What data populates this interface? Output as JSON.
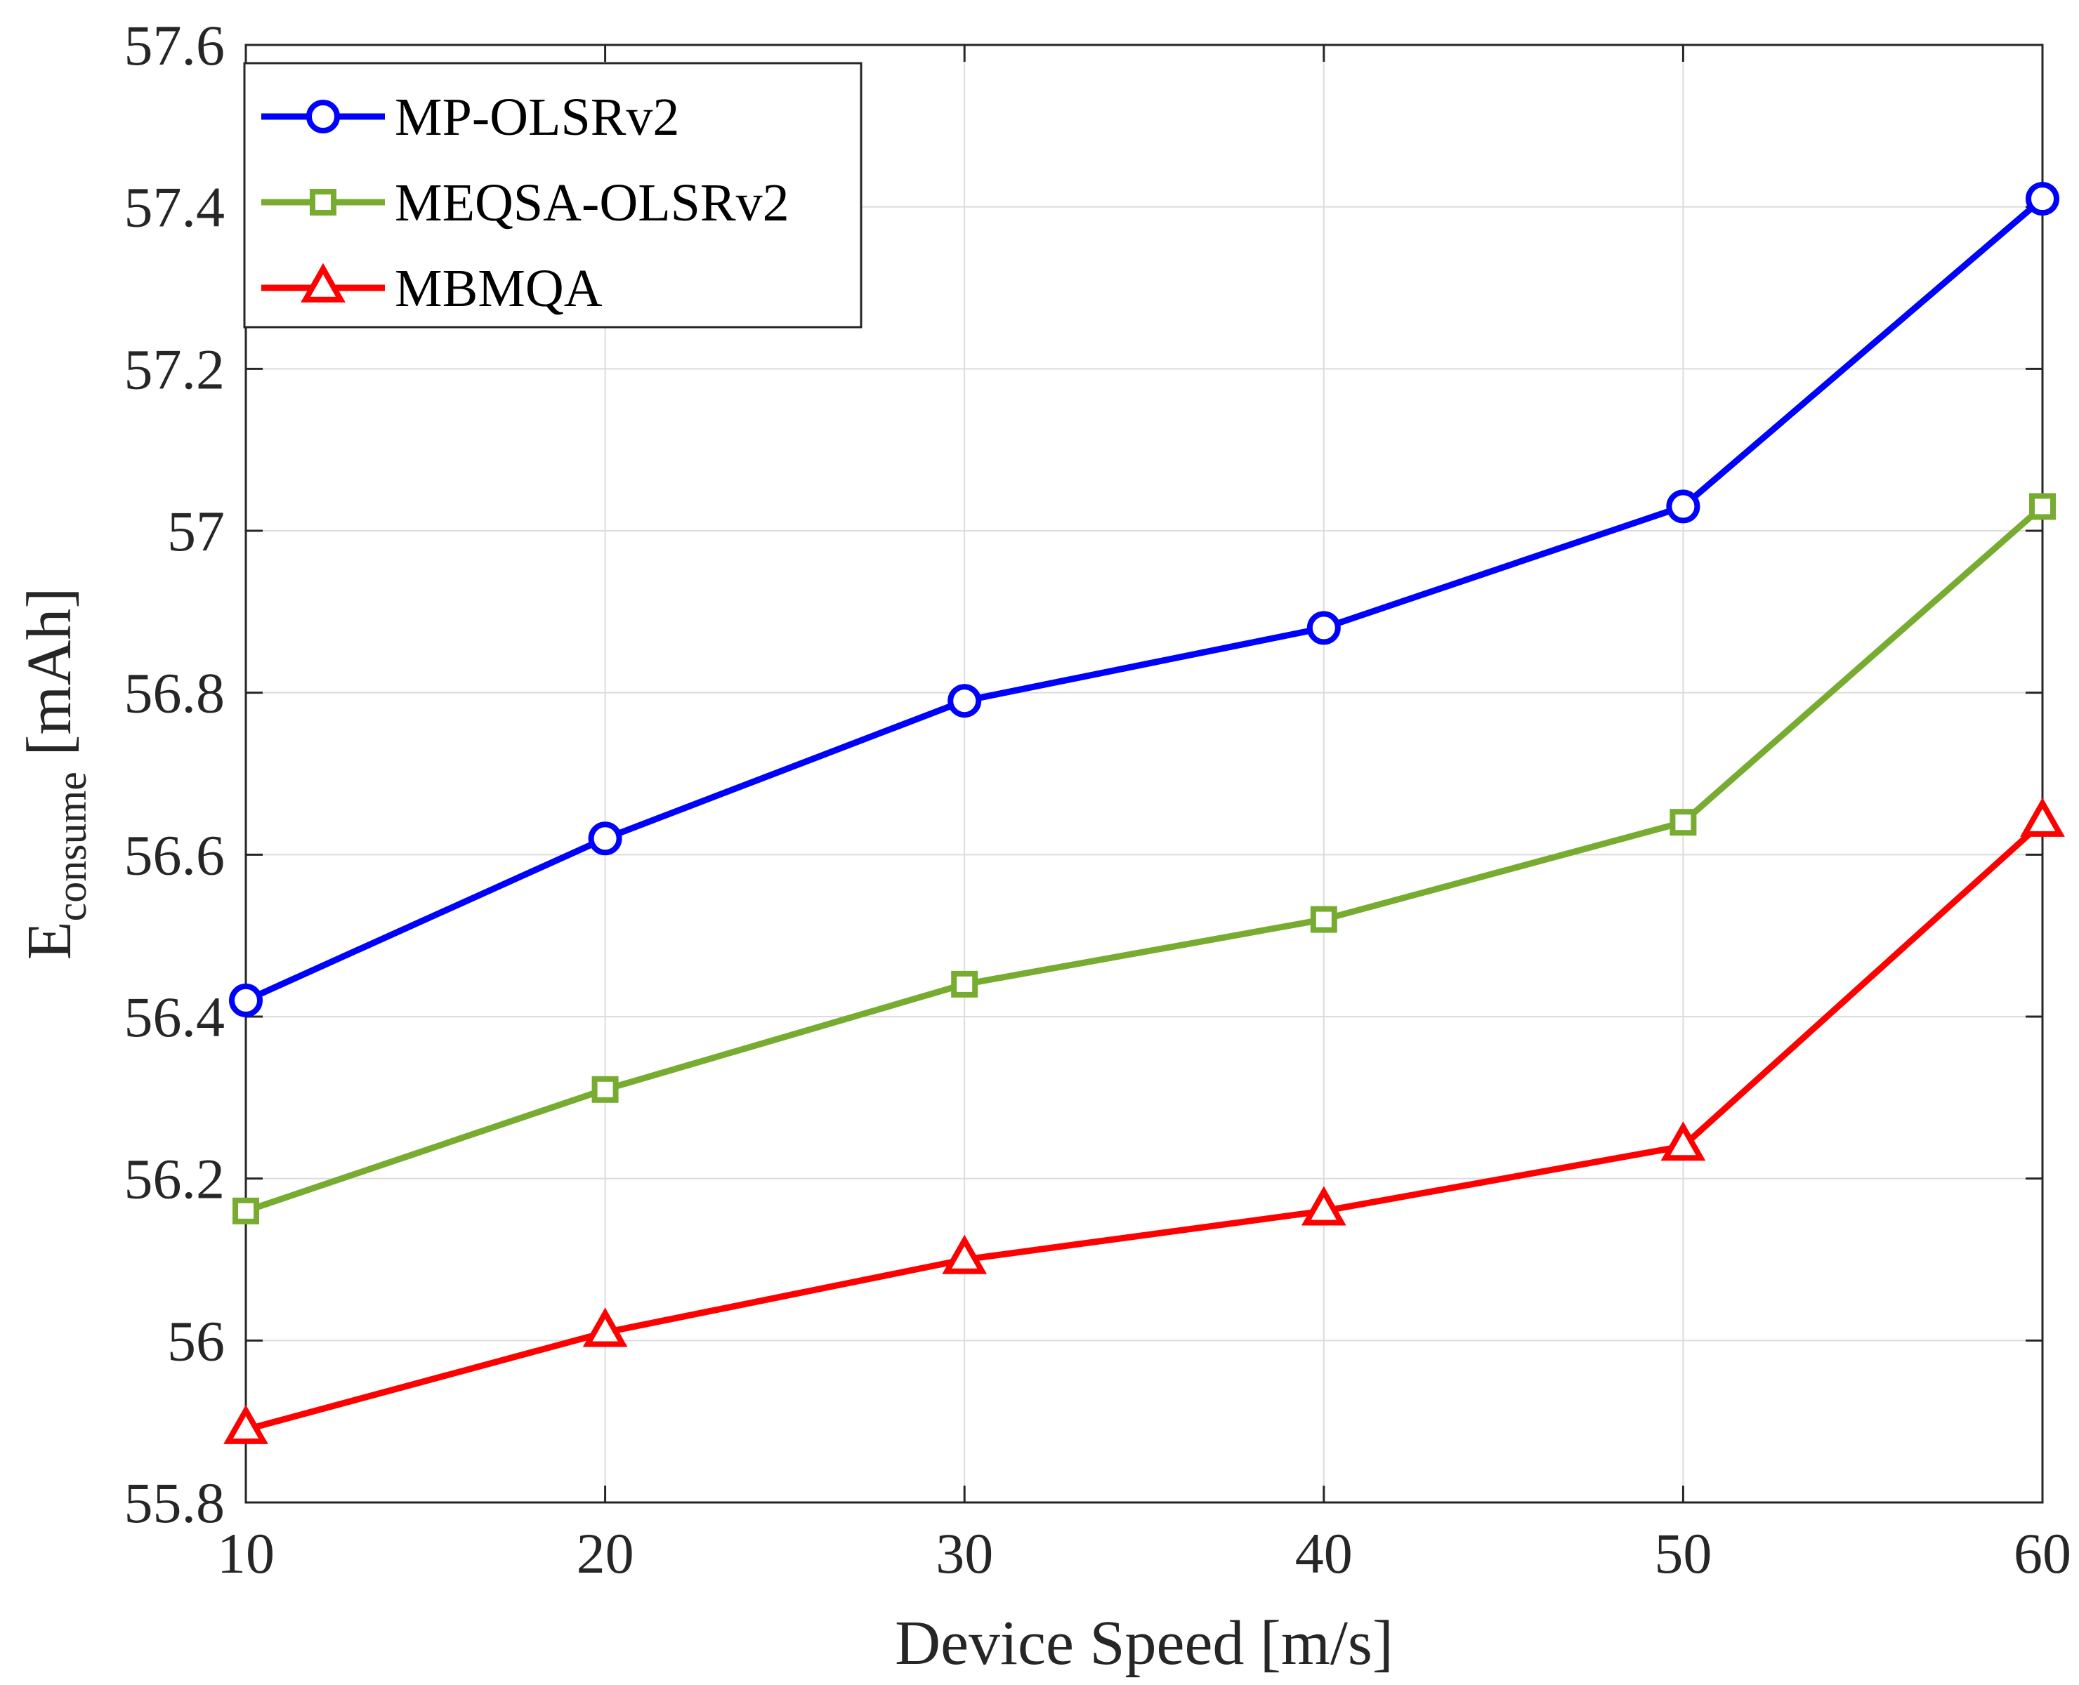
{
  "chart_data": {
    "type": "line",
    "title": "",
    "xlabel": "Device Speed [m/s]",
    "ylabel": {
      "main": "E",
      "subscript": "consume",
      "unit": " [mAh]"
    },
    "x": [
      10,
      20,
      30,
      40,
      50,
      60
    ],
    "xlim": [
      10,
      60
    ],
    "ylim": [
      55.8,
      57.6
    ],
    "xticks": [
      10,
      20,
      30,
      40,
      50,
      60
    ],
    "xtick_labels": [
      "10",
      "20",
      "30",
      "40",
      "50",
      "60"
    ],
    "yticks": [
      55.8,
      56,
      56.2,
      56.4,
      56.6,
      56.8,
      57,
      57.2,
      57.4,
      57.6
    ],
    "ytick_labels": [
      "55.8",
      "56",
      "56.2",
      "56.4",
      "56.6",
      "56.8",
      "57",
      "57.2",
      "57.4",
      "57.6"
    ],
    "grid": true,
    "legend_position": "top-left",
    "series": [
      {
        "name": "MP-OLSRv2",
        "color": "#0000ff",
        "marker": "circle",
        "values": [
          56.42,
          56.62,
          56.79,
          56.88,
          57.03,
          57.41
        ]
      },
      {
        "name": "MEQSA-OLSRv2",
        "color": "#77ac30",
        "marker": "square",
        "values": [
          56.16,
          56.31,
          56.44,
          56.52,
          56.64,
          57.03
        ]
      },
      {
        "name": "MBMQA",
        "color": "#ff0000",
        "marker": "triangle",
        "values": [
          55.89,
          56.01,
          56.1,
          56.16,
          56.24,
          56.64
        ]
      }
    ]
  }
}
